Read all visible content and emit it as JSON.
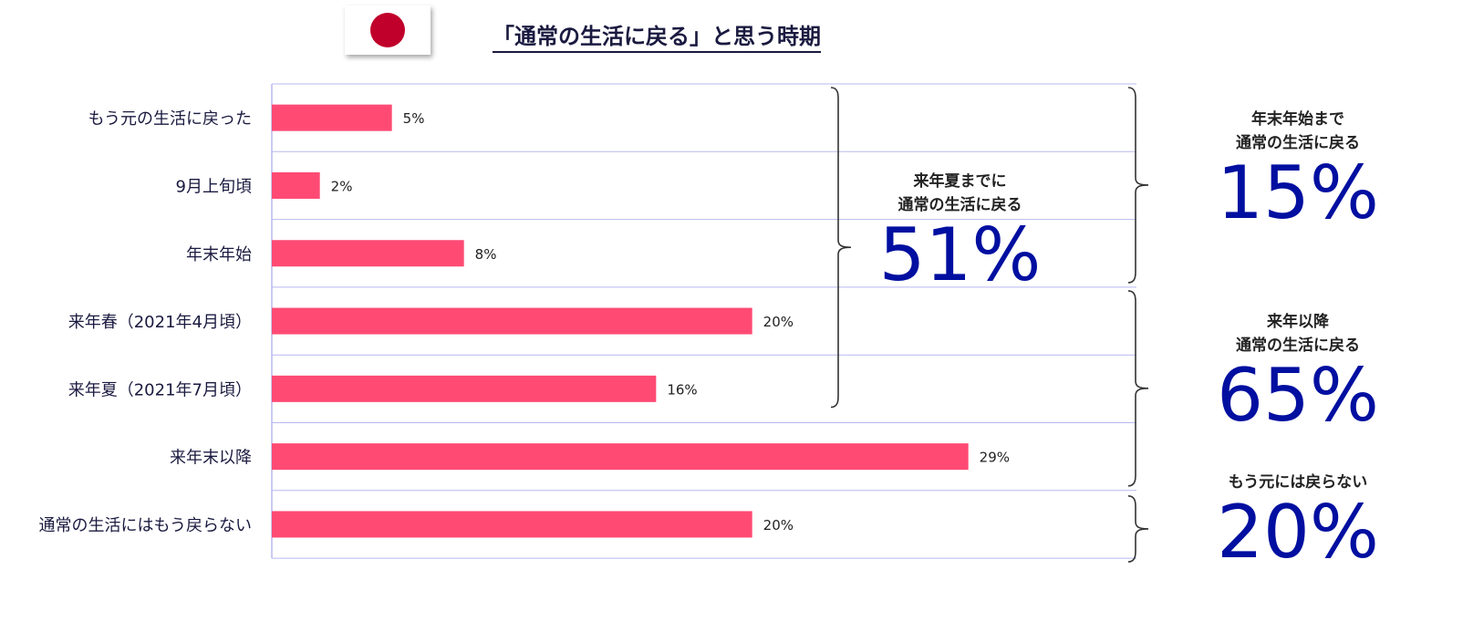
{
  "title": "「通常の生活に戻る」と思う時期",
  "chart_data": {
    "type": "bar",
    "orientation": "horizontal",
    "categories": [
      "もう元の生活に戻った",
      "9月上旬頃",
      "年末年始",
      "来年春（2021年4月頃）",
      "来年夏（2021年7月頃）",
      "来年末以降",
      "通常の生活にはもう戻らない"
    ],
    "values": [
      5,
      2,
      8,
      20,
      16,
      29,
      20
    ],
    "data_labels": [
      "5%",
      "2%",
      "8%",
      "20%",
      "16%",
      "29%",
      "20%"
    ],
    "xlim": [
      0,
      36
    ],
    "bar_color": "#ff4a74",
    "grid": true,
    "grid_color": "#b8b8f0",
    "label_color": "#1a1a40"
  },
  "annotations": {
    "summer": {
      "line1": "来年夏までに",
      "line2": "通常の生活に戻る",
      "value": "51%"
    },
    "year_end": {
      "line1": "年末年始まで",
      "line2": "通常の生活に戻る",
      "value": "15%"
    },
    "after_next_year": {
      "line1": "来年以降",
      "line2": "通常の生活に戻る",
      "value": "65%"
    },
    "never": {
      "line1": "もう元には戻らない",
      "value": "20%"
    }
  },
  "colors": {
    "accent": "#000fa0",
    "flag_red": "#c0002a"
  }
}
